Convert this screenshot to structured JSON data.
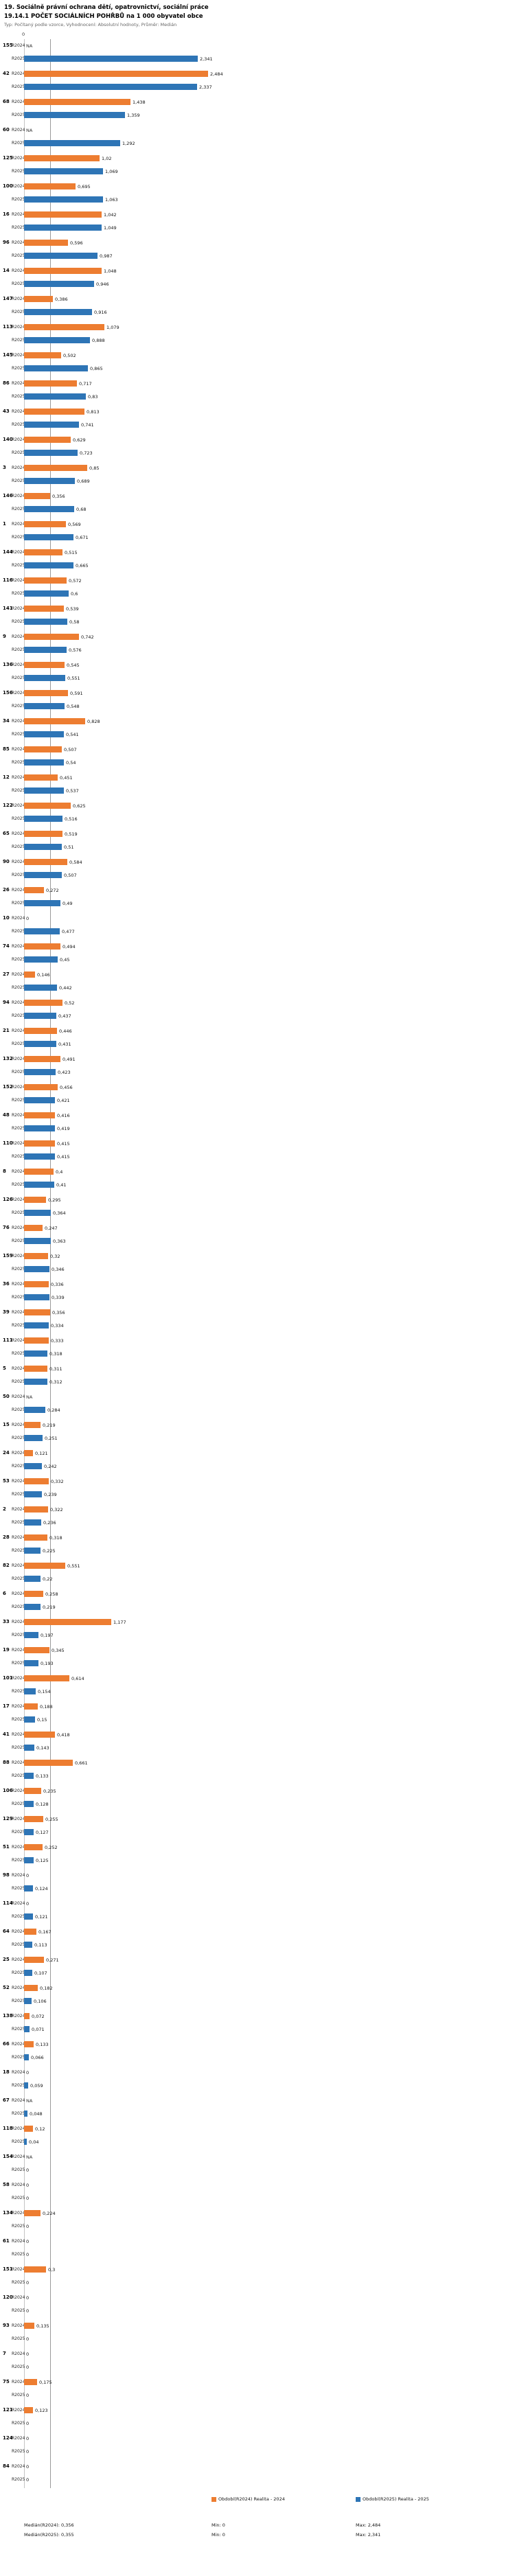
{
  "header": {
    "title": "19. Sociálně právní ochrana dětí, opatrovnictví, sociální práce",
    "subtitle": "19.14.1 POČET SOCIÁLNÍCH POHŘBŮ na 1 000 obyvatel obce",
    "meta": "Typ: Počítaný podle vzorce, Vyhodnocení: Absolutní hodnoty, Průměr: Medián"
  },
  "chart_data": {
    "type": "bar",
    "orientation": "horizontal",
    "value_format": "czech decimal comma, NA = missing",
    "axis": {
      "tick_labels": [
        "0"
      ],
      "xlim": [
        0,
        2.6
      ]
    },
    "series_labels": {
      "r2024": "R2024",
      "r2025": "R2025"
    },
    "colors": {
      "r2024": "#ED7D31",
      "r2025": "#2E75B6",
      "median_line": "#9a9a9a"
    },
    "median": {
      "r2024": 0.356,
      "r2025": 0.355
    },
    "rows": [
      {
        "id": "155",
        "r2024": "NA",
        "r2025": "2,341"
      },
      {
        "id": "42",
        "r2024": "2,484",
        "r2025": "2,337"
      },
      {
        "id": "68",
        "r2024": "1,438",
        "r2025": "1,359"
      },
      {
        "id": "60",
        "r2024": "NA",
        "r2025": "1,292"
      },
      {
        "id": "125",
        "r2024": "1,02",
        "r2025": "1,069"
      },
      {
        "id": "100",
        "r2024": "0,695",
        "r2025": "1,063"
      },
      {
        "id": "16",
        "r2024": "1,042",
        "r2025": "1,049"
      },
      {
        "id": "96",
        "r2024": "0,596",
        "r2025": "0,987"
      },
      {
        "id": "14",
        "r2024": "1,048",
        "r2025": "0,946"
      },
      {
        "id": "147",
        "r2024": "0,386",
        "r2025": "0,916"
      },
      {
        "id": "113",
        "r2024": "1,079",
        "r2025": "0,888"
      },
      {
        "id": "145",
        "r2024": "0,502",
        "r2025": "0,865"
      },
      {
        "id": "86",
        "r2024": "0,717",
        "r2025": "0,83"
      },
      {
        "id": "43",
        "r2024": "0,813",
        "r2025": "0,741"
      },
      {
        "id": "140",
        "r2024": "0,629",
        "r2025": "0,723"
      },
      {
        "id": "3",
        "r2024": "0,85",
        "r2025": "0,689"
      },
      {
        "id": "146",
        "r2024": "0,356",
        "r2025": "0,68"
      },
      {
        "id": "1",
        "r2024": "0,569",
        "r2025": "0,671"
      },
      {
        "id": "144",
        "r2024": "0,515",
        "r2025": "0,665"
      },
      {
        "id": "116",
        "r2024": "0,572",
        "r2025": "0,6"
      },
      {
        "id": "141",
        "r2024": "0,539",
        "r2025": "0,58"
      },
      {
        "id": "9",
        "r2024": "0,742",
        "r2025": "0,576"
      },
      {
        "id": "136",
        "r2024": "0,545",
        "r2025": "0,551"
      },
      {
        "id": "156",
        "r2024": "0,591",
        "r2025": "0,548"
      },
      {
        "id": "34",
        "r2024": "0,828",
        "r2025": "0,541"
      },
      {
        "id": "85",
        "r2024": "0,507",
        "r2025": "0,54"
      },
      {
        "id": "12",
        "r2024": "0,451",
        "r2025": "0,537"
      },
      {
        "id": "122",
        "r2024": "0,625",
        "r2025": "0,516"
      },
      {
        "id": "65",
        "r2024": "0,519",
        "r2025": "0,51"
      },
      {
        "id": "90",
        "r2024": "0,584",
        "r2025": "0,507"
      },
      {
        "id": "26",
        "r2024": "0,272",
        "r2025": "0,49"
      },
      {
        "id": "10",
        "r2024": "0",
        "r2025": "0,477"
      },
      {
        "id": "74",
        "r2024": "0,494",
        "r2025": "0,45"
      },
      {
        "id": "27",
        "r2024": "0,146",
        "r2025": "0,442"
      },
      {
        "id": "94",
        "r2024": "0,52",
        "r2025": "0,437"
      },
      {
        "id": "21",
        "r2024": "0,446",
        "r2025": "0,431"
      },
      {
        "id": "132",
        "r2024": "0,491",
        "r2025": "0,423"
      },
      {
        "id": "152",
        "r2024": "0,456",
        "r2025": "0,421"
      },
      {
        "id": "48",
        "r2024": "0,416",
        "r2025": "0,419"
      },
      {
        "id": "110",
        "r2024": "0,415",
        "r2025": "0,415"
      },
      {
        "id": "8",
        "r2024": "0,4",
        "r2025": "0,41"
      },
      {
        "id": "126",
        "r2024": "0,295",
        "r2025": "0,364"
      },
      {
        "id": "76",
        "r2024": "0,247",
        "r2025": "0,363"
      },
      {
        "id": "159",
        "r2024": "0,32",
        "r2025": "0,346"
      },
      {
        "id": "36",
        "r2024": "0,336",
        "r2025": "0,339"
      },
      {
        "id": "39",
        "r2024": "0,356",
        "r2025": "0,334"
      },
      {
        "id": "111",
        "r2024": "0,333",
        "r2025": "0,318"
      },
      {
        "id": "5",
        "r2024": "0,311",
        "r2025": "0,312"
      },
      {
        "id": "50",
        "r2024": "NA",
        "r2025": "0,284"
      },
      {
        "id": "15",
        "r2024": "0,219",
        "r2025": "0,251"
      },
      {
        "id": "24",
        "r2024": "0,121",
        "r2025": "0,242"
      },
      {
        "id": "53",
        "r2024": "0,332",
        "r2025": "0,239"
      },
      {
        "id": "2",
        "r2024": "0,322",
        "r2025": "0,236"
      },
      {
        "id": "28",
        "r2024": "0,318",
        "r2025": "0,225"
      },
      {
        "id": "82",
        "r2024": "0,551",
        "r2025": "0,22"
      },
      {
        "id": "6",
        "r2024": "0,258",
        "r2025": "0,219"
      },
      {
        "id": "33",
        "r2024": "1,177",
        "r2025": "0,197"
      },
      {
        "id": "19",
        "r2024": "0,345",
        "r2025": "0,193"
      },
      {
        "id": "101",
        "r2024": "0,614",
        "r2025": "0,154"
      },
      {
        "id": "17",
        "r2024": "0,188",
        "r2025": "0,15"
      },
      {
        "id": "41",
        "r2024": "0,418",
        "r2025": "0,143"
      },
      {
        "id": "88",
        "r2024": "0,661",
        "r2025": "0,133"
      },
      {
        "id": "106",
        "r2024": "0,235",
        "r2025": "0,128"
      },
      {
        "id": "129",
        "r2024": "0,255",
        "r2025": "0,127"
      },
      {
        "id": "51",
        "r2024": "0,252",
        "r2025": "0,125"
      },
      {
        "id": "98",
        "r2024": "0",
        "r2025": "0,124"
      },
      {
        "id": "114",
        "r2024": "0",
        "r2025": "0,121"
      },
      {
        "id": "64",
        "r2024": "0,167",
        "r2025": "0,113"
      },
      {
        "id": "25",
        "r2024": "0,271",
        "r2025": "0,107"
      },
      {
        "id": "52",
        "r2024": "0,182",
        "r2025": "0,106"
      },
      {
        "id": "138",
        "r2024": "0,072",
        "r2025": "0,071"
      },
      {
        "id": "66",
        "r2024": "0,133",
        "r2025": "0,066"
      },
      {
        "id": "18",
        "r2024": "0",
        "r2025": "0,059"
      },
      {
        "id": "67",
        "r2024": "NA",
        "r2025": "0,048"
      },
      {
        "id": "118",
        "r2024": "0,12",
        "r2025": "0,04"
      },
      {
        "id": "154",
        "r2024": "NA",
        "r2025": "0"
      },
      {
        "id": "58",
        "r2024": "0",
        "r2025": "0"
      },
      {
        "id": "134",
        "r2024": "0,224",
        "r2025": "0"
      },
      {
        "id": "61",
        "r2024": "0",
        "r2025": "0"
      },
      {
        "id": "151",
        "r2024": "0,3",
        "r2025": "0"
      },
      {
        "id": "120",
        "r2024": "0",
        "r2025": "0"
      },
      {
        "id": "93",
        "r2024": "0,135",
        "r2025": "0"
      },
      {
        "id": "7",
        "r2024": "0",
        "r2025": "0"
      },
      {
        "id": "75",
        "r2024": "0,175",
        "r2025": "0"
      },
      {
        "id": "121",
        "r2024": "0,123",
        "r2025": "0"
      },
      {
        "id": "124",
        "r2024": "0",
        "r2025": "0"
      },
      {
        "id": "84",
        "r2024": "0",
        "r2025": "0"
      }
    ],
    "legend": [
      {
        "label": "Období(R2024) Realita - 2024",
        "color": "#ED7D31"
      },
      {
        "label": "Období(R2025) Realita - 2025",
        "color": "#2E75B6"
      }
    ],
    "stats": {
      "median_2024": "Medián(R2024): 0,356",
      "min_2024": "Min: 0",
      "max_2024": "Max: 2,484",
      "median_2025": "Medián(R2025): 0,355",
      "min_2025": "Min: 0",
      "max_2025": "Max: 2,341"
    }
  }
}
